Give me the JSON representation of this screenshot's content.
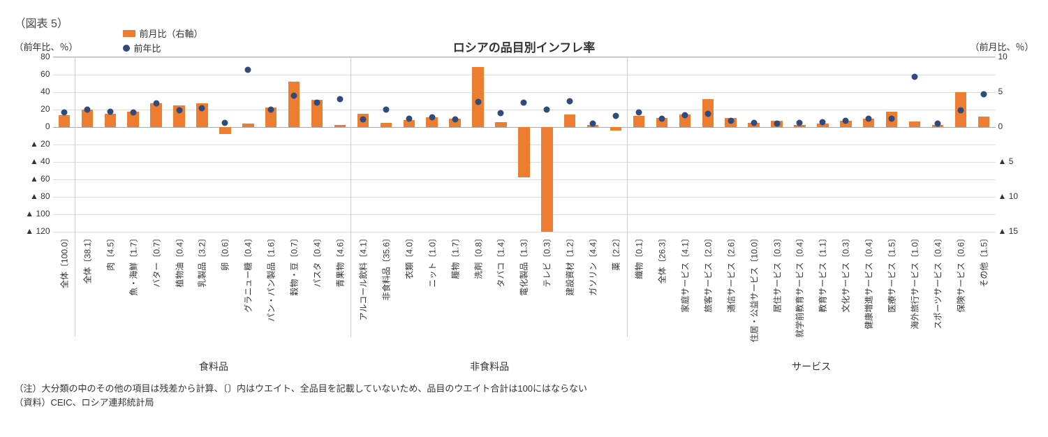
{
  "figure_label": "（図表 5）",
  "header": {
    "y_left_title": "（前年比、％）",
    "y_right_title": "（前月比、％）",
    "chart_title": "ロシアの品目別インフレ率"
  },
  "legend": {
    "bar": "前月比（右軸）",
    "dot": "前年比"
  },
  "colors": {
    "bar": "#ed7d31",
    "dot": "#2f4b7c",
    "grid": "#dddddd",
    "axis": "#aaaaaa",
    "text": "#333333",
    "bg": "#ffffff"
  },
  "chart": {
    "type": "bar+marker-dual-axis",
    "left_axis": {
      "min": -120,
      "max": 80,
      "step": 20
    },
    "right_axis": {
      "min": -15,
      "max": 10,
      "step": 5
    },
    "zero_ratio": 0.4,
    "left_ticks_labels": [
      "80",
      "60",
      "40",
      "20",
      "0",
      "▲ 20",
      "▲ 40",
      "▲ 60",
      "▲ 80",
      "▲ 100",
      "▲ 120"
    ],
    "right_ticks_labels": [
      "10",
      "5",
      "0",
      "▲ 5",
      "▲ 10",
      "▲ 15"
    ],
    "groups": [
      {
        "label": "",
        "span": 1
      },
      {
        "label": "食料品",
        "span": 12
      },
      {
        "label": "非食料品",
        "span": 12
      },
      {
        "label": "サービス",
        "span": 16
      }
    ],
    "items": [
      {
        "label": "全体〔100.0〕",
        "yoy": 17,
        "mom": 1.7,
        "cat": "overall"
      },
      {
        "label": "全体〔38.1〕",
        "yoy": 20,
        "mom": 2.5,
        "cat": "food"
      },
      {
        "label": "肉〔4.5〕",
        "yoy": 18,
        "mom": 1.9,
        "cat": "food"
      },
      {
        "label": "魚・海鮮〔1.7〕",
        "yoy": 17,
        "mom": 2.2,
        "cat": "food"
      },
      {
        "label": "バター〔0.7〕",
        "yoy": 27,
        "mom": 3.4,
        "cat": "food"
      },
      {
        "label": "植物油〔0.4〕",
        "yoy": 19,
        "mom": 3.1,
        "cat": "food"
      },
      {
        "label": "乳製品〔3.2〕",
        "yoy": 22,
        "mom": 3.4,
        "cat": "food"
      },
      {
        "label": "卵〔0.6〕",
        "yoy": 5,
        "mom": -1.0,
        "cat": "food"
      },
      {
        "label": "グラニュー糖〔0.4〕",
        "yoy": 66,
        "mom": 0.5,
        "cat": "food"
      },
      {
        "label": "パン・パン製品〔1.6〕",
        "yoy": 20,
        "mom": 2.8,
        "cat": "food"
      },
      {
        "label": "穀物・豆〔0.7〕",
        "yoy": 36,
        "mom": 6.5,
        "cat": "food"
      },
      {
        "label": "パスタ〔0.4〕",
        "yoy": 28,
        "mom": 3.9,
        "cat": "food"
      },
      {
        "label": "青果物〔4.6〕",
        "yoy": 32,
        "mom": 0.3,
        "cat": "food"
      },
      {
        "label": "アルコール飲料〔4.1〕",
        "yoy": 9,
        "mom": 1.9,
        "cat": "food"
      },
      {
        "label": "非食料品〔35.6〕",
        "yoy": 20,
        "mom": 0.6,
        "cat": "nonfood"
      },
      {
        "label": "衣類〔4.0〕",
        "yoy": 10,
        "mom": 1.0,
        "cat": "nonfood"
      },
      {
        "label": "ニット〔1.0〕",
        "yoy": 11,
        "mom": 1.4,
        "cat": "nonfood"
      },
      {
        "label": "履物〔1.7〕",
        "yoy": 9,
        "mom": 1.2,
        "cat": "nonfood"
      },
      {
        "label": "洗剤〔0.8〕",
        "yoy": 29,
        "mom": 8.6,
        "cat": "nonfood"
      },
      {
        "label": "タバコ〔1.4〕",
        "yoy": 16,
        "mom": 0.7,
        "cat": "nonfood"
      },
      {
        "label": "電化製品〔1.3〕",
        "yoy": 28,
        "mom": -7.2,
        "cat": "nonfood"
      },
      {
        "label": "テレビ〔0.3〕",
        "yoy": 20,
        "mom": -15.0,
        "cat": "nonfood"
      },
      {
        "label": "建設資材〔1.2〕",
        "yoy": 30,
        "mom": 1.8,
        "cat": "nonfood"
      },
      {
        "label": "ガソリン〔4.4〕",
        "yoy": 4,
        "mom": 0.3,
        "cat": "nonfood"
      },
      {
        "label": "薬〔2.2〕",
        "yoy": 13,
        "mom": -0.5,
        "cat": "nonfood"
      },
      {
        "label": "織物〔0.1〕",
        "yoy": 17,
        "mom": 1.6,
        "cat": "nonfood"
      },
      {
        "label": "全体〔26.3〕",
        "yoy": 10,
        "mom": 1.3,
        "cat": "service"
      },
      {
        "label": "家庭サービス〔4.1〕",
        "yoy": 14,
        "mom": 1.8,
        "cat": "service"
      },
      {
        "label": "旅客サービス〔2.0〕",
        "yoy": 15,
        "mom": 4.0,
        "cat": "service"
      },
      {
        "label": "通信サービス〔2.6〕",
        "yoy": 7,
        "mom": 1.3,
        "cat": "service"
      },
      {
        "label": "住居・公益サービス〔10.0〕",
        "yoy": 5,
        "mom": 0.6,
        "cat": "service"
      },
      {
        "label": "居住サービス〔0.3〕",
        "yoy": 4,
        "mom": 0.9,
        "cat": "service"
      },
      {
        "label": "就学前教育サービス〔0.4〕",
        "yoy": 5,
        "mom": 0.3,
        "cat": "service"
      },
      {
        "label": "教育サービス〔1.1〕",
        "yoy": 6,
        "mom": 0.5,
        "cat": "service"
      },
      {
        "label": "文化サービス〔0.3〕",
        "yoy": 7,
        "mom": 0.9,
        "cat": "service"
      },
      {
        "label": "健康増進サービス〔0.4〕",
        "yoy": 10,
        "mom": 1.2,
        "cat": "service"
      },
      {
        "label": "医療サービス〔1.5〕",
        "yoy": 10,
        "mom": 2.2,
        "cat": "service"
      },
      {
        "label": "海外旅行サービス〔1.0〕",
        "yoy": 58,
        "mom": 0.8,
        "cat": "service"
      },
      {
        "label": "スポーツサービス〔0.4〕",
        "yoy": 4,
        "mom": 0.3,
        "cat": "service"
      },
      {
        "label": "保険サービス〔0.6〕",
        "yoy": 19,
        "mom": 5.0,
        "cat": "service"
      },
      {
        "label": "その他〔1.5〕",
        "yoy": 38,
        "mom": 1.5,
        "cat": "service"
      }
    ]
  },
  "footnotes": {
    "note": "（注）大分類の中のその他の項目は残差から計算、〔〕内はウエイト、全品目を記載していないため、品目のウエイト合計は100にはならない",
    "source": "（資料）CEIC、ロシア連邦統計局"
  }
}
